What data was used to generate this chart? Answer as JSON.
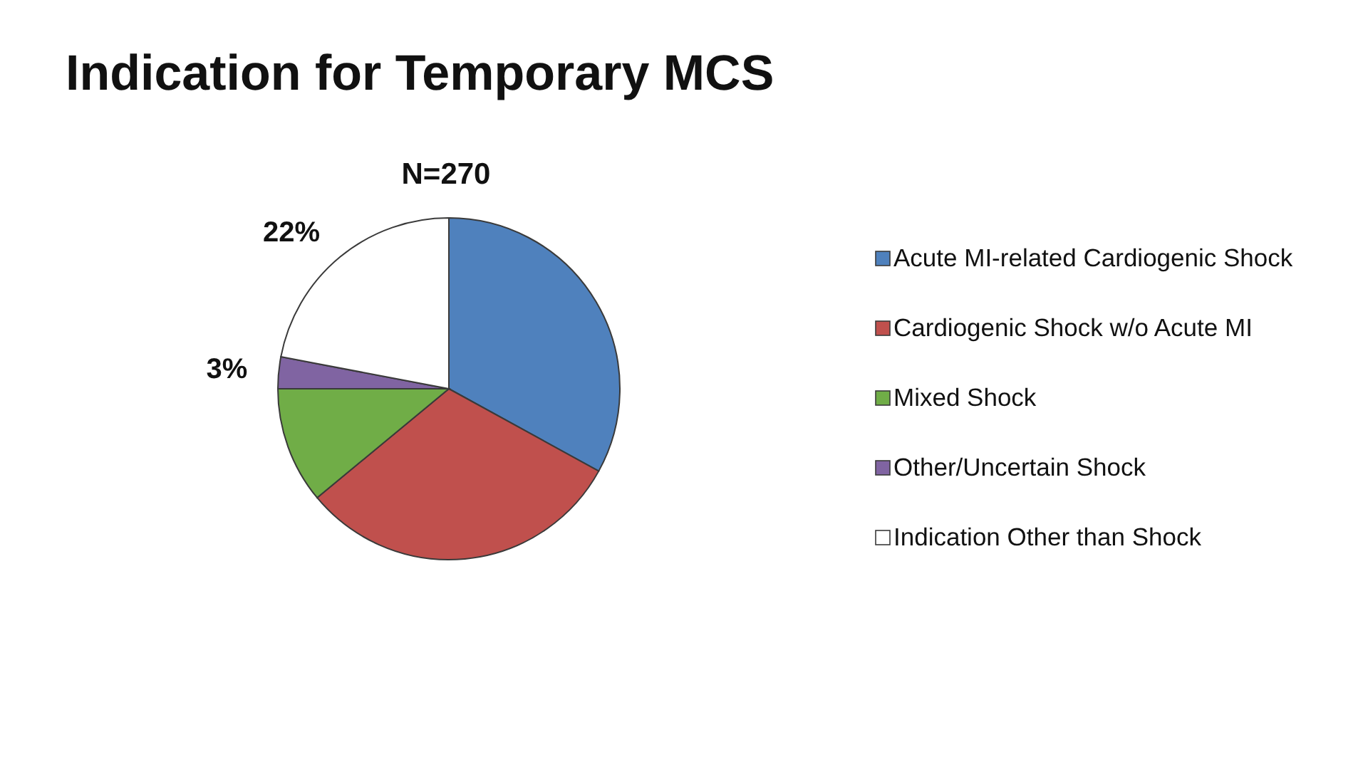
{
  "chart_data": {
    "type": "pie",
    "title": "Indication for Temporary MCS",
    "subtitle": "N=270",
    "categories": [
      "Acute MI-related Cardiogenic Shock",
      "Cardiogenic Shock w/o Acute MI",
      "Mixed Shock",
      "Other/Uncertain Shock",
      "Indication Other than Shock"
    ],
    "values": [
      33,
      31,
      11,
      3,
      22
    ],
    "colors": [
      "#4f81bd",
      "#c0504d",
      "#70ad47",
      "#8064a2",
      "#ffffff"
    ],
    "value_labels": [
      null,
      null,
      null,
      "3%",
      "22%"
    ],
    "legend": "right"
  }
}
